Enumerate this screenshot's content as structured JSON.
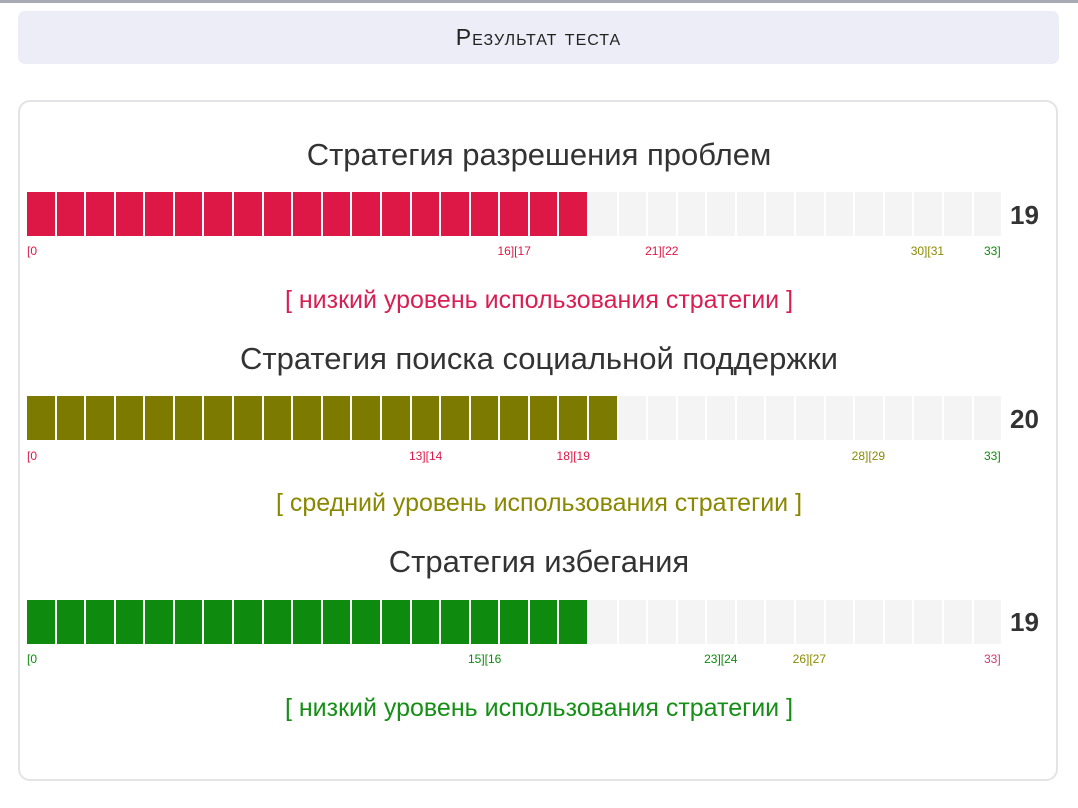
{
  "header": {
    "title": "Результат теста"
  },
  "scale_max": 33,
  "colors": {
    "empty": "#f4f4f4",
    "red": "#de1846",
    "olive": "#7d7a00",
    "green": "#0e8a0e",
    "pink": "#d03a6c"
  },
  "strategies": [
    {
      "title": "Стратегия разрешения проблем",
      "value": 19,
      "value_label": "19",
      "bar_color": "#de1846",
      "level_text": "[ низкий уровень использования стратегии ]",
      "level_color": "#d81e52",
      "ticks": [
        {
          "text": "[0",
          "at": 0,
          "color": "#de1846"
        },
        {
          "text": "16][17",
          "at": 16.5,
          "color": "#de1846"
        },
        {
          "text": "21][22",
          "at": 21.5,
          "color": "#de1846"
        },
        {
          "text": "30][31",
          "at": 30.5,
          "color": "#8a8a00"
        },
        {
          "text": "33]",
          "at": 33,
          "color": "#0e8a0e"
        }
      ]
    },
    {
      "title": "Стратегия поиска социальной поддержки",
      "value": 20,
      "value_label": "20",
      "bar_color": "#7d7a00",
      "level_text": "[ средний уровень использования стратегии ]",
      "level_color": "#8a8700",
      "ticks": [
        {
          "text": "[0",
          "at": 0,
          "color": "#de1846"
        },
        {
          "text": "13][14",
          "at": 13.5,
          "color": "#de1846"
        },
        {
          "text": "18][19",
          "at": 18.5,
          "color": "#de1846"
        },
        {
          "text": "28][29",
          "at": 28.5,
          "color": "#8a8a00"
        },
        {
          "text": "33]",
          "at": 33,
          "color": "#0e8a0e"
        }
      ]
    },
    {
      "title": "Стратегия избегания",
      "value": 19,
      "value_label": "19",
      "bar_color": "#0e8a0e",
      "level_text": "[ низкий уровень использования стратегии ]",
      "level_color": "#158f15",
      "ticks": [
        {
          "text": "[0",
          "at": 0,
          "color": "#0e8a0e"
        },
        {
          "text": "15][16",
          "at": 15.5,
          "color": "#0e8a0e"
        },
        {
          "text": "23][24",
          "at": 23.5,
          "color": "#0e8a0e"
        },
        {
          "text": "26][27",
          "at": 26.5,
          "color": "#8a8a00"
        },
        {
          "text": "33]",
          "at": 33,
          "color": "#d03a6c"
        }
      ]
    }
  ]
}
